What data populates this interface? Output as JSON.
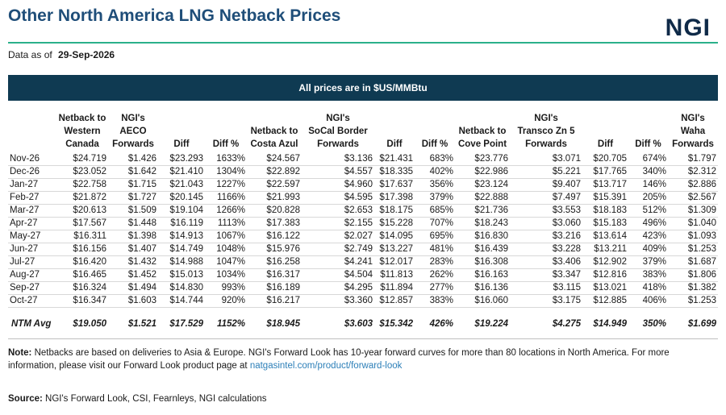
{
  "header": {
    "title": "Other North America LNG Netback Prices",
    "logo_text": "NGI",
    "as_of_label": "Data as of",
    "as_of_date": "29-Sep-2026"
  },
  "banner": {
    "text": "All prices are in $US/MMBtu"
  },
  "table": {
    "columns": [
      {
        "key": "month",
        "lines": []
      },
      {
        "key": "wc",
        "lines": [
          "Netback to",
          "Western",
          "Canada"
        ]
      },
      {
        "key": "aeco",
        "lines": [
          "NGI's",
          "AECO",
          "Forwards"
        ]
      },
      {
        "key": "d1",
        "lines": [
          "Diff"
        ]
      },
      {
        "key": "p1",
        "lines": [
          "Diff %"
        ]
      },
      {
        "key": "ca",
        "lines": [
          "Netback to",
          "Costa Azul"
        ]
      },
      {
        "key": "socal",
        "lines": [
          "NGI's",
          "SoCal Border",
          "Forwards"
        ]
      },
      {
        "key": "d2",
        "lines": [
          "Diff"
        ]
      },
      {
        "key": "p2",
        "lines": [
          "Diff %"
        ]
      },
      {
        "key": "cp",
        "lines": [
          "Netback to",
          "Cove Point"
        ]
      },
      {
        "key": "transco",
        "lines": [
          "NGI's",
          "Transco Zn 5",
          "Forwards"
        ]
      },
      {
        "key": "d3",
        "lines": [
          "Diff"
        ]
      },
      {
        "key": "p3",
        "lines": [
          "Diff %"
        ]
      },
      {
        "key": "waha",
        "lines": [
          "NGI's",
          "Waha",
          "Forwards"
        ]
      }
    ],
    "rows": [
      [
        "Nov-26",
        "$24.719",
        "$1.426",
        "$23.293",
        "1633%",
        "$24.567",
        "$3.136",
        "$21.431",
        "683%",
        "$23.776",
        "$3.071",
        "$20.705",
        "674%",
        "$1.797"
      ],
      [
        "Dec-26",
        "$23.052",
        "$1.642",
        "$21.410",
        "1304%",
        "$22.892",
        "$4.557",
        "$18.335",
        "402%",
        "$22.986",
        "$5.221",
        "$17.765",
        "340%",
        "$2.312"
      ],
      [
        "Jan-27",
        "$22.758",
        "$1.715",
        "$21.043",
        "1227%",
        "$22.597",
        "$4.960",
        "$17.637",
        "356%",
        "$23.124",
        "$9.407",
        "$13.717",
        "146%",
        "$2.886"
      ],
      [
        "Feb-27",
        "$21.872",
        "$1.727",
        "$20.145",
        "1166%",
        "$21.993",
        "$4.595",
        "$17.398",
        "379%",
        "$22.888",
        "$7.497",
        "$15.391",
        "205%",
        "$2.567"
      ],
      [
        "Mar-27",
        "$20.613",
        "$1.509",
        "$19.104",
        "1266%",
        "$20.828",
        "$2.653",
        "$18.175",
        "685%",
        "$21.736",
        "$3.553",
        "$18.183",
        "512%",
        "$1.309"
      ],
      [
        "Apr-27",
        "$17.567",
        "$1.448",
        "$16.119",
        "1113%",
        "$17.383",
        "$2.155",
        "$15.228",
        "707%",
        "$18.243",
        "$3.060",
        "$15.183",
        "496%",
        "$1.040"
      ],
      [
        "May-27",
        "$16.311",
        "$1.398",
        "$14.913",
        "1067%",
        "$16.122",
        "$2.027",
        "$14.095",
        "695%",
        "$16.830",
        "$3.216",
        "$13.614",
        "423%",
        "$1.093"
      ],
      [
        "Jun-27",
        "$16.156",
        "$1.407",
        "$14.749",
        "1048%",
        "$15.976",
        "$2.749",
        "$13.227",
        "481%",
        "$16.439",
        "$3.228",
        "$13.211",
        "409%",
        "$1.253"
      ],
      [
        "Jul-27",
        "$16.420",
        "$1.432",
        "$14.988",
        "1047%",
        "$16.258",
        "$4.241",
        "$12.017",
        "283%",
        "$16.308",
        "$3.406",
        "$12.902",
        "379%",
        "$1.687"
      ],
      [
        "Aug-27",
        "$16.465",
        "$1.452",
        "$15.013",
        "1034%",
        "$16.317",
        "$4.504",
        "$11.813",
        "262%",
        "$16.163",
        "$3.347",
        "$12.816",
        "383%",
        "$1.806"
      ],
      [
        "Sep-27",
        "$16.324",
        "$1.494",
        "$14.830",
        "993%",
        "$16.189",
        "$4.295",
        "$11.894",
        "277%",
        "$16.136",
        "$3.115",
        "$13.021",
        "418%",
        "$1.382"
      ],
      [
        "Oct-27",
        "$16.347",
        "$1.603",
        "$14.744",
        "920%",
        "$16.217",
        "$3.360",
        "$12.857",
        "383%",
        "$16.060",
        "$3.175",
        "$12.885",
        "406%",
        "$1.253"
      ]
    ],
    "avg_row": [
      "NTM Avg",
      "$19.050",
      "$1.521",
      "$17.529",
      "1152%",
      "$18.945",
      "$3.603",
      "$15.342",
      "426%",
      "$19.224",
      "$4.275",
      "$14.949",
      "350%",
      "$1.699"
    ]
  },
  "note": {
    "label": "Note:",
    "text": " Netbacks are based on deliveries to Asia & Europe. NGI's Forward Look has 10-year forward curves for more than 80 locations in North America.  For more information, please visit our Forward Look product page at ",
    "link": "natgasintel.com/product/forward-look"
  },
  "source": {
    "label": "Source:",
    "text": "  NGI's Forward Look, CSI, Fearnleys, NGI calculations"
  }
}
